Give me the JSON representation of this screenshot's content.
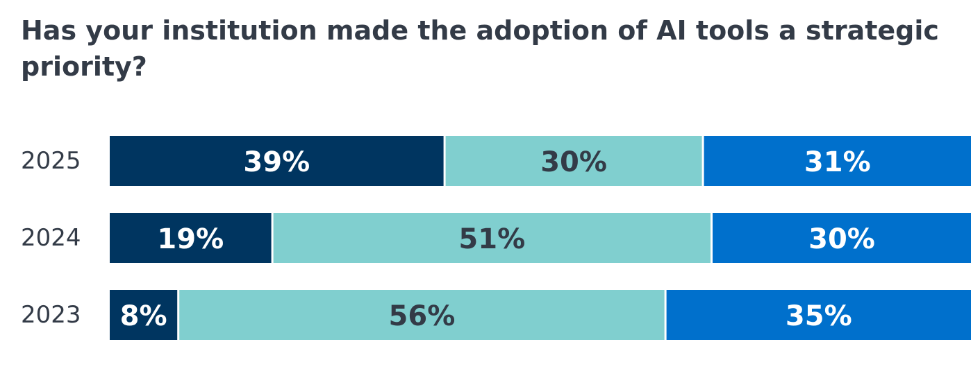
{
  "chart_data": {
    "type": "bar",
    "orientation": "horizontal",
    "stacked": true,
    "percent": true,
    "title": "Has your institution made the adoption of AI tools a strategic priority?",
    "categories": [
      "2025",
      "2024",
      "2023"
    ],
    "series": [
      {
        "values": [
          39,
          19,
          8
        ],
        "labels": [
          "39%",
          "19%",
          "8%"
        ],
        "color": "#003560",
        "label_color": "#ffffff"
      },
      {
        "values": [
          30,
          51,
          56
        ],
        "labels": [
          "30%",
          "51%",
          "56%"
        ],
        "color": "#80cfcf",
        "label_color": "#333b47"
      },
      {
        "values": [
          31,
          30,
          35
        ],
        "labels": [
          "31%",
          "30%",
          "35%"
        ],
        "color": "#0070cc",
        "label_color": "#ffffff"
      }
    ],
    "xlim": [
      0,
      100
    ],
    "grid": false,
    "legend": "none"
  }
}
